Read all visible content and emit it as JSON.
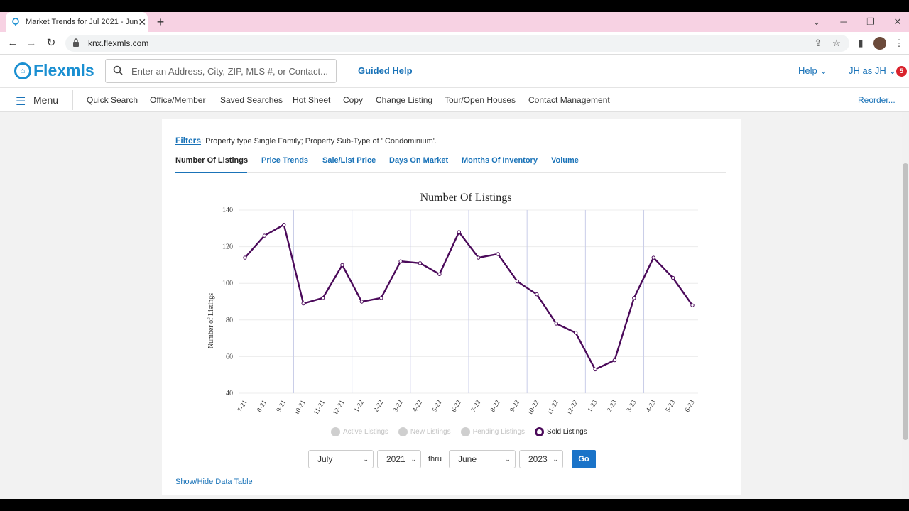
{
  "browser": {
    "tab_title": "Market Trends for Jul 2021 - Jun",
    "new_tab": "+",
    "url": "knx.flexmls.com"
  },
  "app": {
    "logo": "Flexmls",
    "search_placeholder": "Enter an Address, City, ZIP, MLS #, or Contact...",
    "guided_help": "Guided Help",
    "help": "Help",
    "user": "JH as JH",
    "notification_count": "5"
  },
  "menu": {
    "label": "Menu",
    "items": [
      "Quick Search",
      "Office/Member",
      "Saved Searches",
      "Hot Sheet",
      "Copy",
      "Change Listing",
      "Tour/Open Houses",
      "Contact Management"
    ],
    "reorder": "Reorder..."
  },
  "filters": {
    "label": "Filters",
    "text": ": Property type Single Family; Property Sub-Type of ' Condominium'."
  },
  "tabs": [
    "Number Of Listings",
    "Price Trends",
    "Sale/List Price",
    "Days On Market",
    "Months Of Inventory",
    "Volume"
  ],
  "chart_data": {
    "type": "line",
    "title": "Number Of Listings",
    "ylabel": "Number of Listings",
    "xlabel": "",
    "ylim": [
      40,
      140
    ],
    "yticks": [
      40,
      60,
      80,
      100,
      120,
      140
    ],
    "categories": [
      "7-21",
      "8-21",
      "9-21",
      "10-21",
      "11-21",
      "12-21",
      "1-22",
      "2-22",
      "3-22",
      "4-22",
      "5-22",
      "6-22",
      "7-22",
      "8-22",
      "9-22",
      "10-22",
      "11-22",
      "12-22",
      "1-23",
      "2-23",
      "3-23",
      "4-23",
      "5-23",
      "6-23"
    ],
    "series": [
      {
        "name": "Sold Listings",
        "color": "#4b0a5a",
        "values": [
          114,
          126,
          132,
          89,
          92,
          110,
          90,
          92,
          112,
          111,
          105,
          128,
          114,
          116,
          101,
          94,
          78,
          73,
          53,
          58,
          92,
          114,
          103,
          88
        ]
      }
    ],
    "legend": [
      "Active Listings",
      "New Listings",
      "Pending Listings",
      "Sold Listings"
    ],
    "legend_placement": "bottom",
    "grid": true
  },
  "controls": {
    "from_month": "July",
    "from_year": "2021",
    "thru": "thru",
    "to_month": "June",
    "to_year": "2023",
    "go": "Go"
  },
  "show_hide": "Show/Hide Data Table"
}
